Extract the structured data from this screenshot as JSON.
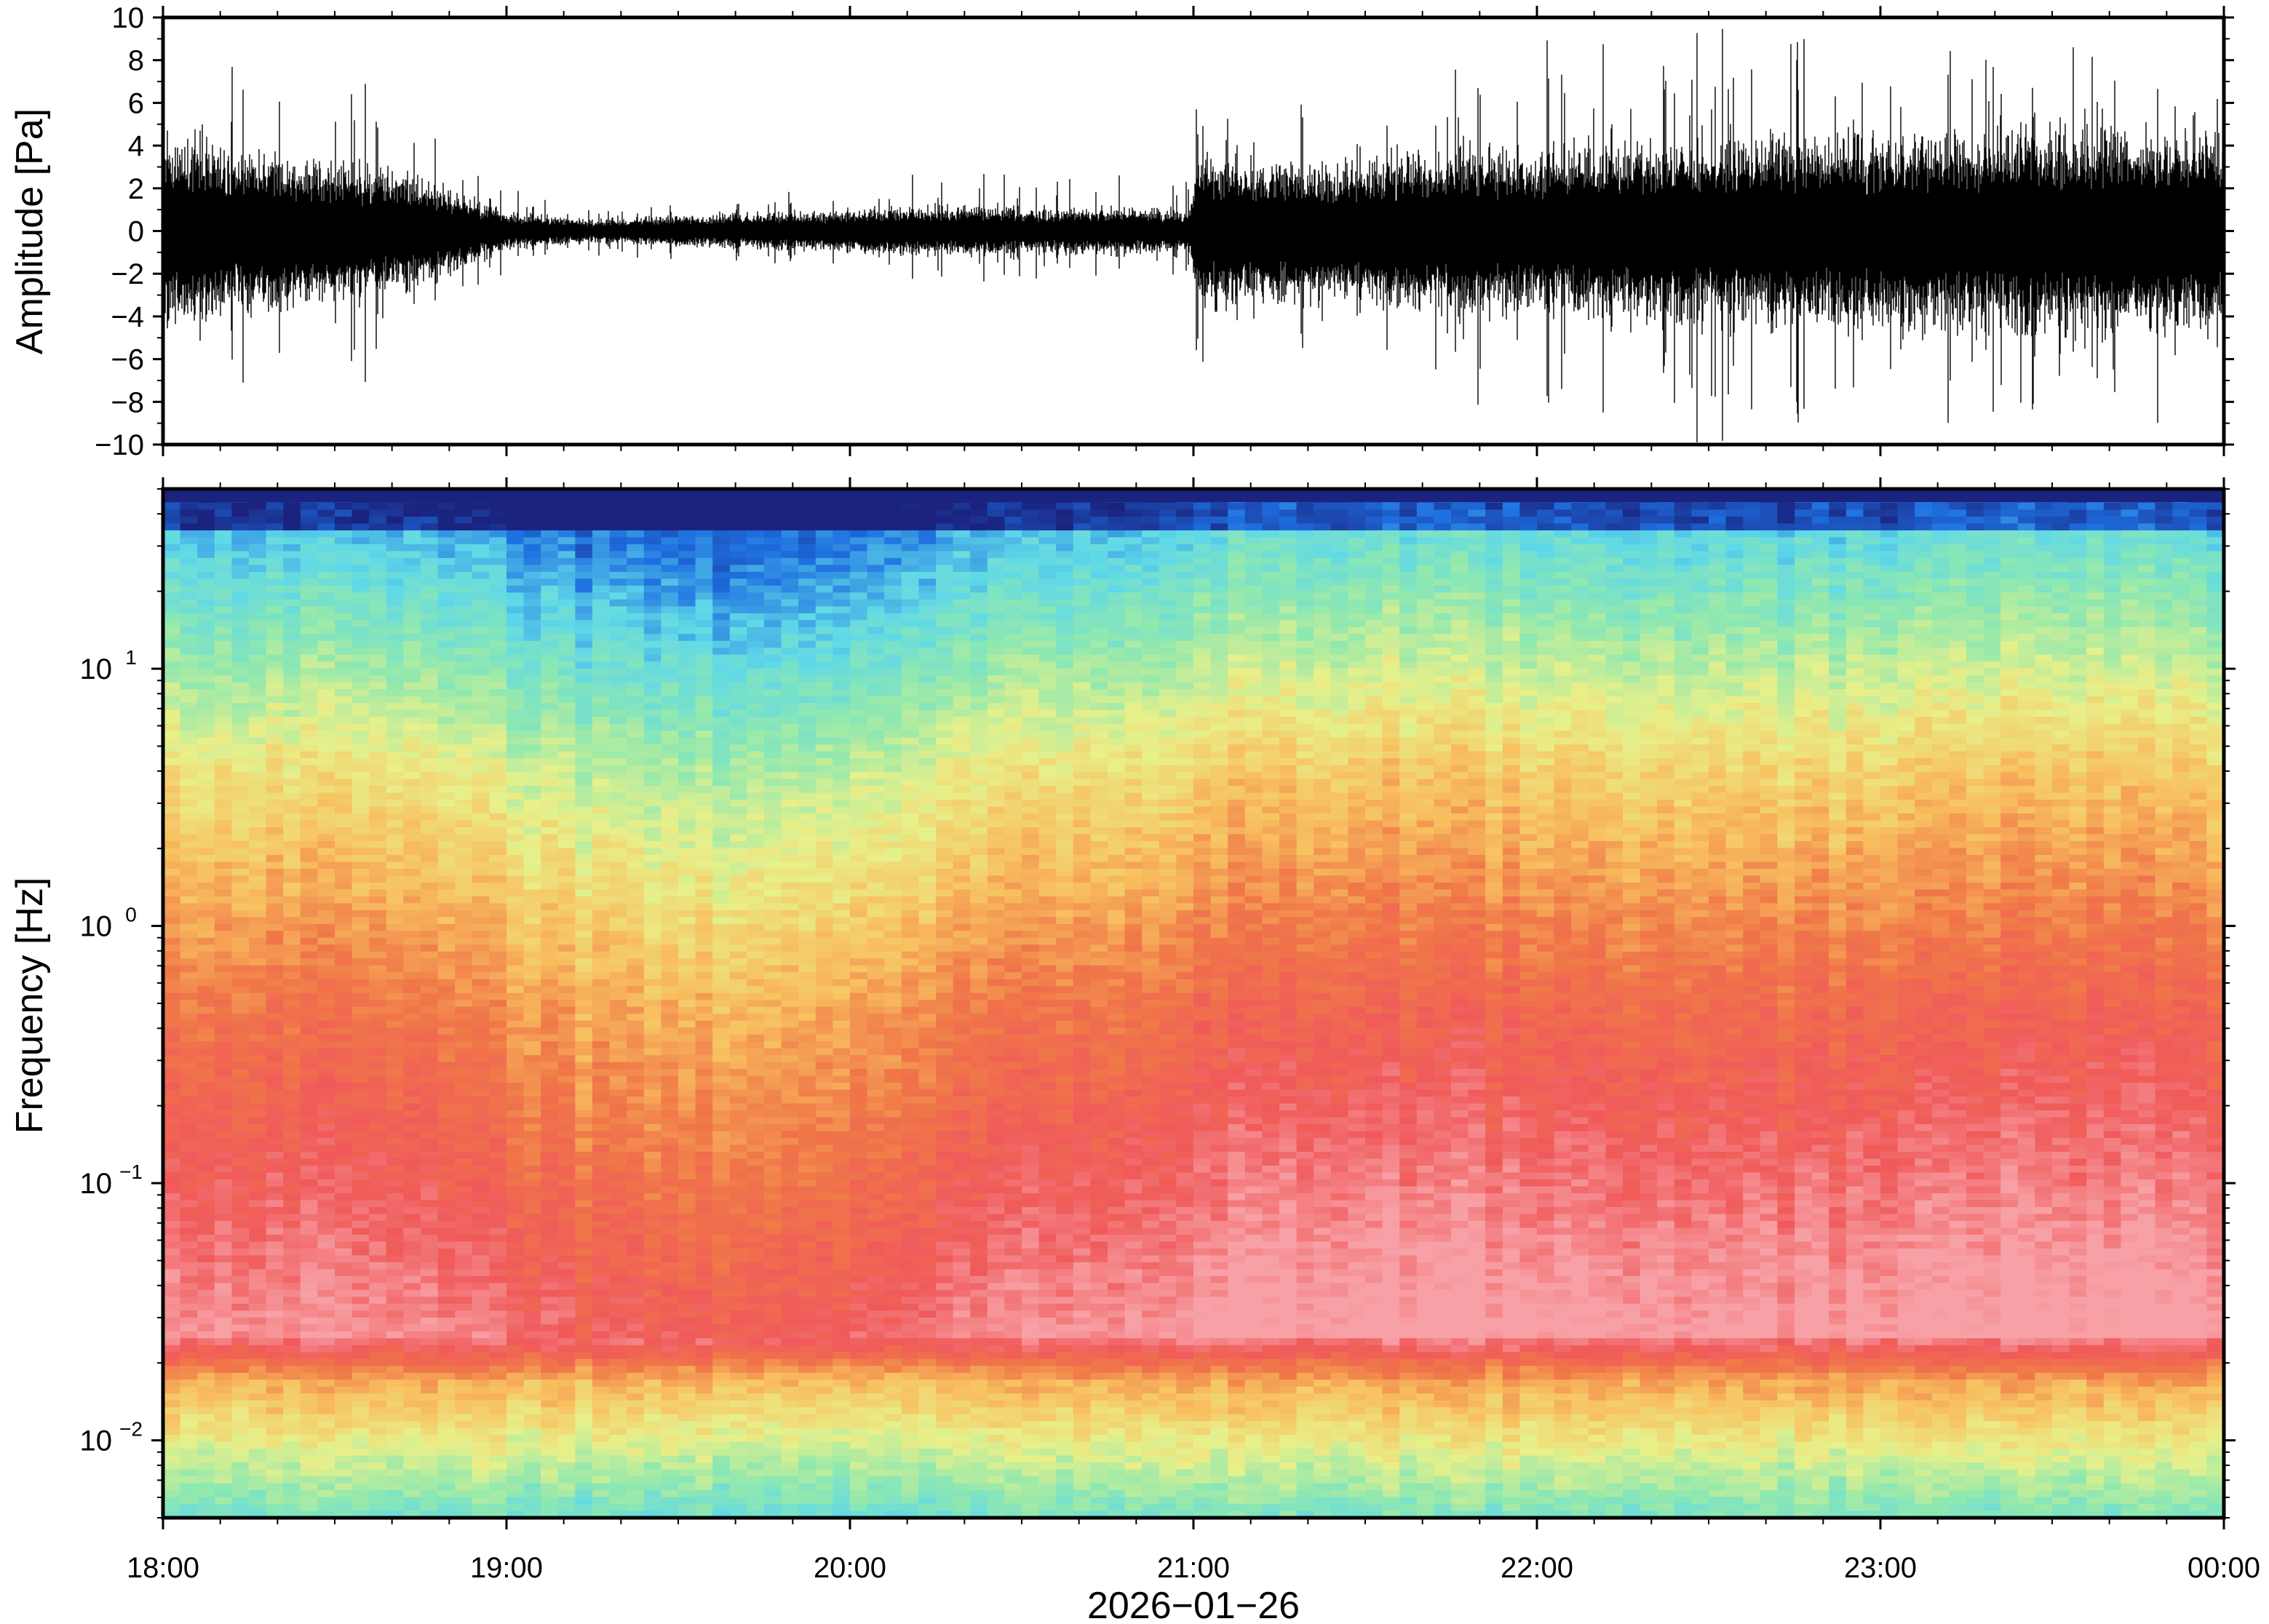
{
  "chart_data": [
    {
      "type": "line",
      "ylabel": "Amplitude [Pa]",
      "ylim": [
        -10,
        10
      ],
      "yticks": [
        "10",
        "8",
        "6",
        "4",
        "2",
        "0",
        "−2",
        "−4",
        "−6",
        "−8",
        "−10"
      ],
      "ytick_values": [
        10,
        8,
        6,
        4,
        2,
        0,
        -2,
        -4,
        -6,
        -8,
        -10
      ],
      "x_range": [
        "18:00",
        "00:00"
      ],
      "line_color": "#000000",
      "series": [
        {
          "x_hours": [
            18.0,
            18.25,
            18.5,
            18.75,
            19.0,
            19.25,
            19.5,
            19.75,
            20.0,
            20.25,
            20.5,
            20.75,
            20.99,
            21.01,
            21.25,
            21.5,
            21.75,
            22.0,
            22.25,
            22.5,
            22.75,
            23.0,
            23.25,
            23.5,
            23.75,
            24.0
          ],
          "envelope_typical": [
            5.0,
            4.2,
            3.6,
            3.0,
            1.0,
            0.6,
            0.8,
            1.0,
            1.1,
            1.3,
            1.2,
            1.3,
            1.1,
            4.0,
            3.8,
            3.8,
            4.5,
            4.3,
            4.6,
            4.8,
            5.0,
            5.0,
            5.2,
            5.4,
            5.4,
            5.4
          ],
          "envelope_peak": [
            10,
            9,
            8,
            6,
            2,
            1.2,
            1.6,
            2.0,
            2.5,
            3.0,
            3.0,
            3.0,
            2.5,
            8.0,
            8.0,
            8.0,
            10,
            10,
            10,
            10,
            10,
            10,
            10,
            10,
            10,
            10
          ]
        }
      ]
    },
    {
      "type": "heatmap",
      "ylabel": "Frequency [Hz]",
      "xlabel": "2026−01−26",
      "yscale": "log",
      "ylim": [
        0.005,
        50
      ],
      "ytick_values": [
        10,
        1,
        0.1,
        0.01
      ],
      "yticks": [
        {
          "base": "10",
          "exp": "1"
        },
        {
          "base": "10",
          "exp": "0"
        },
        {
          "base": "10",
          "exp": "−1"
        },
        {
          "base": "10",
          "exp": "−2"
        }
      ],
      "xticks": [
        "18:00",
        "19:00",
        "20:00",
        "21:00",
        "22:00",
        "23:00",
        "00:00"
      ],
      "colormap": [
        "#1a237e",
        "#1e6fe0",
        "#5fd8e8",
        "#8fe8b0",
        "#e8f08a",
        "#f8c060",
        "#f07848",
        "#f05a5a",
        "#f7a0a5"
      ]
    }
  ]
}
